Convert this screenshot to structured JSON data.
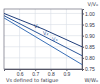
{
  "chart_data": {
    "type": "line",
    "y_label": "V/V₀",
    "x_label": "W/W₀",
    "annotation": "Vs defined to fatigue",
    "series": [
      {
        "name": "V₁",
        "color": "#1f3d7a",
        "x": [
          0.5,
          0.75,
          1.0
        ],
        "values": [
          1.0,
          0.93,
          0.85
        ]
      },
      {
        "name": "V₂",
        "color": "#2a5599",
        "x": [
          0.5,
          0.75,
          1.0
        ],
        "values": [
          0.99,
          0.9,
          0.81
        ]
      },
      {
        "name": "V₃",
        "color": "#3a70b8",
        "x": [
          0.5,
          0.75,
          1.0
        ],
        "values": [
          0.98,
          0.875,
          0.77
        ]
      }
    ],
    "xlim": [
      0.5,
      1.0
    ],
    "xticks": [
      0.6,
      0.7,
      0.8,
      0.9
    ],
    "ylim": [
      0.75,
      1.02
    ],
    "yticks": [
      {
        "value": 0.75,
        "label": "0.75"
      },
      {
        "value": 0.8,
        "label": "0.80"
      },
      {
        "value": 0.85,
        "label": "0.85"
      },
      {
        "value": 0.9,
        "label": "0.90"
      },
      {
        "value": 0.95,
        "label": "0.95"
      },
      {
        "value": 1.0,
        "label": "1.00"
      }
    ],
    "grid": true
  }
}
